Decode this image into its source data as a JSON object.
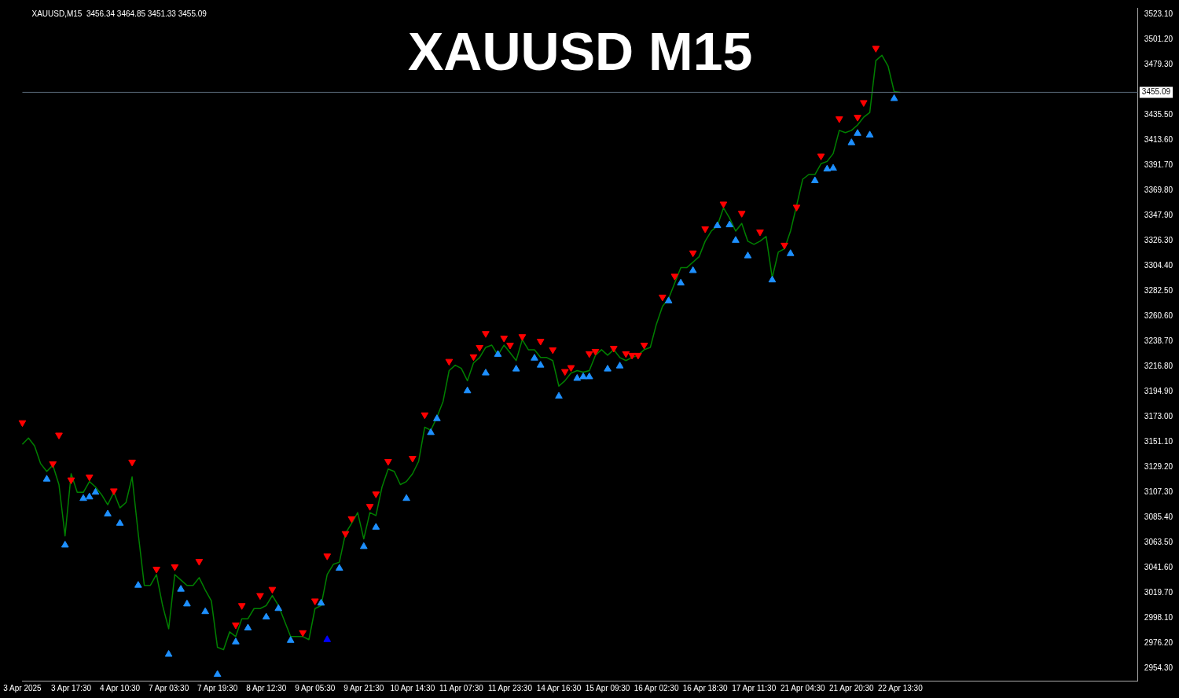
{
  "chart_data": {
    "type": "line",
    "title": "XAUUSD M15",
    "subtitle": "XAUUSD,M15  3456.34 3464.85 3451.33 3455.09",
    "categories": [
      "3 Apr 2025",
      null,
      null,
      null,
      null,
      null,
      null,
      null,
      "3 Apr 17:30",
      null,
      null,
      null,
      null,
      null,
      null,
      null,
      "4 Apr 10:30",
      null,
      null,
      null,
      null,
      null,
      null,
      null,
      "7 Apr 03:30",
      null,
      null,
      null,
      null,
      null,
      null,
      null,
      "7 Apr 19:30",
      null,
      null,
      null,
      null,
      null,
      null,
      null,
      "8 Apr 12:30",
      null,
      null,
      null,
      null,
      null,
      null,
      null,
      "9 Apr 05:30",
      null,
      null,
      null,
      null,
      null,
      null,
      null,
      "9 Apr 21:30",
      null,
      null,
      null,
      null,
      null,
      null,
      null,
      "10 Apr 14:30",
      null,
      null,
      null,
      null,
      null,
      null,
      null,
      "11 Apr 07:30",
      null,
      null,
      null,
      null,
      null,
      null,
      null,
      "11 Apr 23:30",
      null,
      null,
      null,
      null,
      null,
      null,
      null,
      "14 Apr 16:30",
      null,
      null,
      null,
      null,
      null,
      null,
      null,
      "15 Apr 09:30",
      null,
      null,
      null,
      null,
      null,
      null,
      null,
      "16 Apr 02:30",
      null,
      null,
      null,
      null,
      null,
      null,
      null,
      "16 Apr 18:30",
      null,
      null,
      null,
      null,
      null,
      null,
      null,
      "17 Apr 11:30",
      null,
      null,
      null,
      null,
      null,
      null,
      null,
      "21 Apr 04:30",
      null,
      null,
      null,
      null,
      null,
      null,
      null,
      "21 Apr 20:30",
      null,
      null,
      null,
      null,
      null,
      null,
      null,
      "22 Apr 13:30",
      null,
      null,
      null,
      null,
      null,
      null,
      null,
      null,
      null,
      null,
      null,
      null,
      null,
      null,
      null,
      null,
      null,
      null,
      null,
      null,
      null,
      null,
      null,
      null,
      null,
      null,
      null,
      null,
      null,
      null,
      null,
      null,
      null,
      null,
      null,
      null,
      null,
      null,
      null
    ],
    "series": [
      {
        "color": "#008000",
        "values": [
          3149.1,
          3154.5,
          3147.7,
          3132.2,
          3125.5,
          3130.9,
          3114.0,
          3069.5,
          3123.4,
          3107.3,
          3107.3,
          3116.7,
          3112.0,
          3105.2,
          3096.5,
          3107.3,
          3093.8,
          3098.5,
          3120.7,
          3071.5,
          3026.4,
          3026.4,
          3035.8,
          3008.9,
          2988.7,
          3035.8,
          3031.1,
          3026.4,
          3026.4,
          3033.1,
          3022.4,
          3012.9,
          2972.5,
          2970.5,
          2986.0,
          2981.9,
          2997.4,
          2997.4,
          3006.2,
          3006.2,
          3008.9,
          3017.6,
          3008.9,
          2995.4,
          2981.9,
          2981.9,
          2981.9,
          2979.2,
          3006.2,
          3008.9,
          3035.8,
          3044.6,
          3046.6,
          3071.5,
          3080.3,
          3089.7,
          3066.8,
          3089.7,
          3087.1,
          3112.0,
          3127.5,
          3125.5,
          3114.0,
          3116.7,
          3123.4,
          3134.2,
          3163.9,
          3161.2,
          3172.6,
          3186.1,
          3213.1,
          3217.8,
          3215.1,
          3204.3,
          3219.8,
          3224.5,
          3233.3,
          3235.3,
          3226.5,
          3235.3,
          3228.6,
          3221.8,
          3240.0,
          3231.3,
          3231.3,
          3224.5,
          3224.5,
          3221.8,
          3199.6,
          3204.3,
          3211.0,
          3213.1,
          3211.7,
          3213.1,
          3226.5,
          3231.3,
          3226.5,
          3231.3,
          3224.5,
          3221.8,
          3224.5,
          3226.5,
          3231.3,
          3233.3,
          3253.5,
          3269.0,
          3275.7,
          3289.2,
          3302.7,
          3302.7,
          3307.4,
          3312.1,
          3325.6,
          3334.4,
          3339.1,
          3354.6,
          3345.8,
          3334.4,
          3341.1,
          3325.6,
          3322.9,
          3325.6,
          3329.7,
          3293.9,
          3316.2,
          3318.9,
          3334.4,
          3356.6,
          3379.5,
          3383.6,
          3383.6,
          3393.0,
          3395.0,
          3401.8,
          3422.0,
          3420.0,
          3422.0,
          3426.7,
          3433.4,
          3437.5,
          3482.6,
          3487.3,
          3477.9,
          3455.7,
          3455.1,
          null,
          null,
          null,
          null,
          null,
          null,
          null,
          null,
          null,
          null,
          null,
          null,
          null,
          null,
          null,
          null,
          null,
          null,
          null,
          null,
          null,
          null,
          null,
          null,
          null,
          null,
          null,
          null,
          null,
          null,
          null,
          null,
          null,
          null,
          null,
          null,
          null,
          null,
          null
        ]
      },
      {
        "type": "scatter",
        "marker": "triangle",
        "color": "#ff0000",
        "values": [
          3167.9,
          null,
          null,
          null,
          null,
          3132.2,
          null,
          null,
          3118.1,
          null,
          null,
          3120.7,
          null,
          null,
          null,
          3108.6,
          null,
          null,
          3133.6,
          null,
          null,
          null,
          3040.5,
          null,
          null,
          3042.6,
          null,
          null,
          null,
          3047.3,
          null,
          null,
          null,
          null,
          null,
          2992.0,
          3008.9,
          null,
          null,
          3017.6,
          null,
          3023.0,
          null,
          null,
          null,
          null,
          2985.3,
          null,
          3012.9,
          null,
          3052.0,
          null,
          null,
          3071.5,
          3084.4,
          null,
          null,
          3095.1,
          3105.9,
          null,
          3134.2,
          null,
          null,
          null,
          3136.9,
          null,
          3174.7,
          null,
          null,
          null,
          3221.2,
          null,
          null,
          null,
          3225.2,
          3233.3,
          3245.4,
          null,
          null,
          3241.4,
          3235.3,
          null,
          3242.7,
          null,
          null,
          3238.7,
          null,
          3231.3,
          null,
          3212.4,
          3215.8,
          null,
          null,
          3227.9,
          3229.9,
          null,
          null,
          3232.6,
          null,
          3227.9,
          3226.5,
          3226.5,
          3235.3,
          null,
          null,
          3277.1,
          null,
          3295.3,
          null,
          null,
          3315.5,
          null,
          3336.4,
          null,
          null,
          3358.0,
          null,
          null,
          3349.9,
          null,
          null,
          3333.7,
          null,
          null,
          null,
          3322.2,
          null,
          3355.3,
          null,
          null,
          null,
          3399.7,
          null,
          null,
          3432.1,
          null,
          null,
          3433.4,
          3446.2,
          null,
          3493.4,
          null,
          null,
          null,
          null,
          null,
          null,
          null,
          null,
          null,
          null,
          null,
          null,
          null,
          null,
          null,
          null,
          null,
          null,
          null,
          null,
          null,
          null,
          null,
          null,
          null,
          null,
          null,
          null,
          null,
          null,
          null,
          null,
          null,
          null,
          null,
          null,
          null,
          null,
          null,
          null,
          null,
          null,
          null
        ]
      },
      {
        "type": "scatter",
        "marker": "triangle",
        "color": "#1e90ff",
        "values": [
          null,
          null,
          null,
          null,
          3118.7,
          null,
          null,
          3061.4,
          null,
          null,
          3101.9,
          3103.2,
          3107.3,
          null,
          3088.4,
          null,
          3080.3,
          null,
          null,
          3026.4,
          null,
          null,
          null,
          null,
          2966.4,
          null,
          3023.0,
          3010.2,
          null,
          null,
          3003.5,
          null,
          2948.9,
          null,
          null,
          2977.2,
          null,
          2989.3,
          null,
          null,
          2998.8,
          null,
          3006.2,
          null,
          2978.5,
          null,
          null,
          null,
          null,
          3010.9,
          null,
          null,
          3041.2,
          null,
          null,
          null,
          3060.1,
          null,
          3076.9,
          null,
          null,
          null,
          null,
          3101.9,
          null,
          null,
          null,
          3159.2,
          3171.3,
          null,
          null,
          null,
          null,
          3195.5,
          null,
          null,
          3211.0,
          null,
          3227.2,
          null,
          null,
          3214.4,
          null,
          null,
          3223.9,
          3217.8,
          null,
          null,
          3190.8,
          null,
          null,
          3206.3,
          3207.7,
          3207.7,
          null,
          null,
          3214.4,
          null,
          3217.1,
          null,
          null,
          null,
          null,
          null,
          null,
          null,
          3273.7,
          null,
          3289.2,
          null,
          3300.0,
          null,
          null,
          null,
          3339.1,
          null,
          3339.8,
          3326.3,
          null,
          3312.8,
          null,
          null,
          null,
          3291.9,
          null,
          null,
          3314.8,
          null,
          null,
          null,
          3378.2,
          null,
          3388.3,
          3389.0,
          null,
          null,
          3411.2,
          3419.3,
          null,
          3417.9,
          null,
          null,
          null,
          3449.6,
          null,
          null,
          null,
          null,
          null,
          null,
          null,
          null,
          null,
          null,
          null,
          null,
          null,
          null,
          null,
          null,
          null,
          null,
          null,
          null,
          null,
          null,
          null,
          null,
          null,
          null,
          null,
          null,
          null,
          null,
          null,
          null,
          null,
          null,
          null,
          null,
          null,
          null,
          null,
          null
        ]
      },
      {
        "type": "scatter",
        "marker": "triangle",
        "color": "#ff0000",
        "values": [
          null,
          null,
          null,
          null,
          null,
          null,
          3157.1,
          null,
          null,
          null,
          null,
          null,
          null,
          null,
          null,
          null,
          null,
          null,
          null,
          null,
          null,
          null,
          null,
          null,
          null,
          null,
          null,
          null,
          null,
          null,
          null,
          null,
          null,
          null,
          null,
          null,
          null,
          null,
          null,
          null,
          null,
          null,
          null,
          null,
          null,
          null,
          null,
          null,
          null,
          null,
          null,
          null,
          null,
          null,
          null,
          null,
          null,
          null,
          null,
          null,
          null,
          null,
          null,
          null,
          null,
          null,
          null,
          null,
          null,
          null,
          null,
          null,
          null,
          null,
          null,
          null,
          null,
          null,
          null,
          null,
          null,
          null,
          null,
          null,
          null,
          null,
          null,
          null,
          null,
          null,
          null,
          null,
          null,
          null,
          null,
          null,
          null,
          null,
          null,
          null,
          null,
          null,
          null,
          null,
          null,
          null,
          null,
          null,
          null,
          null,
          null,
          null,
          null,
          null,
          null,
          null,
          null,
          null,
          null,
          null,
          null,
          null,
          null,
          null,
          null,
          null,
          null,
          null,
          null,
          null,
          null,
          null,
          null,
          null,
          null,
          null,
          null,
          null,
          null,
          null,
          null,
          null,
          null,
          null,
          null,
          null,
          null,
          null,
          null,
          null,
          null,
          null,
          null,
          null,
          null,
          null,
          null,
          null,
          null,
          null,
          null,
          null,
          null,
          null,
          null,
          null,
          null,
          null,
          null,
          null,
          null,
          null,
          null,
          null,
          null,
          null,
          null,
          null,
          null,
          null,
          null,
          null,
          null,
          null
        ]
      },
      {
        "type": "scatter",
        "marker": "triangle",
        "color": "#0000ff",
        "values": [
          null,
          null,
          null,
          null,
          null,
          null,
          null,
          null,
          null,
          null,
          null,
          null,
          null,
          null,
          null,
          null,
          null,
          null,
          null,
          null,
          null,
          null,
          null,
          null,
          null,
          null,
          null,
          null,
          null,
          null,
          null,
          null,
          null,
          null,
          null,
          null,
          null,
          null,
          null,
          null,
          null,
          null,
          null,
          null,
          null,
          null,
          null,
          null,
          null,
          null,
          2979.2,
          null,
          null,
          null,
          null,
          null,
          null,
          null,
          null,
          null,
          null,
          null,
          null,
          null,
          null,
          null,
          null,
          null,
          null,
          null,
          null,
          null,
          null,
          null,
          null,
          null,
          null,
          null,
          null,
          null,
          null,
          null,
          null,
          null,
          null,
          null,
          null,
          null,
          null,
          null,
          null,
          null,
          null,
          null,
          null,
          null,
          null,
          null,
          null,
          null,
          null,
          null,
          null,
          null,
          null,
          null,
          null,
          null,
          null,
          null,
          null,
          null,
          null,
          null,
          null,
          null,
          null,
          null,
          null,
          null,
          null,
          null,
          null,
          null,
          null,
          null,
          null,
          null,
          null,
          null,
          null,
          null,
          null,
          null,
          null,
          null,
          null,
          null,
          null,
          null,
          null,
          null,
          null,
          null,
          null,
          null,
          null,
          null,
          null,
          null,
          null,
          null,
          null,
          null,
          null,
          null,
          null,
          null,
          null,
          null,
          null,
          null,
          null,
          null,
          null,
          null,
          null,
          null,
          null,
          null,
          null,
          null,
          null,
          null,
          null,
          null,
          null,
          null,
          null,
          null,
          null,
          null,
          null,
          null
        ]
      }
    ],
    "ylim": [
      2943.5,
      3528.5
    ],
    "yticks": [
      {
        "value": 2954.3,
        "label": "2954.30"
      },
      {
        "value": 2976.2,
        "label": "2976.20"
      },
      {
        "value": 2998.1,
        "label": "2998.10"
      },
      {
        "value": 3019.7,
        "label": "3019.70"
      },
      {
        "value": 3041.6,
        "label": "3041.60"
      },
      {
        "value": 3063.5,
        "label": "3063.50"
      },
      {
        "value": 3085.4,
        "label": "3085.40"
      },
      {
        "value": 3107.3,
        "label": "3107.30"
      },
      {
        "value": 3129.2,
        "label": "3129.20"
      },
      {
        "value": 3151.1,
        "label": "3151.10"
      },
      {
        "value": 3173.0,
        "label": "3173.00"
      },
      {
        "value": 3194.9,
        "label": "3194.90"
      },
      {
        "value": 3216.8,
        "label": "3216.80"
      },
      {
        "value": 3238.7,
        "label": "3238.70"
      },
      {
        "value": 3260.6,
        "label": "3260.60"
      },
      {
        "value": 3282.5,
        "label": "3282.50"
      },
      {
        "value": 3304.4,
        "label": "3304.40"
      },
      {
        "value": 3326.3,
        "label": "3326.30"
      },
      {
        "value": 3347.9,
        "label": "3347.90"
      },
      {
        "value": 3369.8,
        "label": "3369.80"
      },
      {
        "value": 3391.7,
        "label": "3391.70"
      },
      {
        "value": 3413.6,
        "label": "3413.60"
      },
      {
        "value": 3435.5,
        "label": "3435.50"
      },
      {
        "value": 3479.3,
        "label": "3479.30"
      },
      {
        "value": 3501.2,
        "label": "3501.20"
      },
      {
        "value": 3523.1,
        "label": "3523.10"
      }
    ],
    "ref_lines": [
      {
        "axis": "y",
        "value": 3455.09,
        "label": "3455.09",
        "color": "#5a6a7a"
      }
    ],
    "grid": false,
    "legend": false,
    "marker": "none"
  }
}
